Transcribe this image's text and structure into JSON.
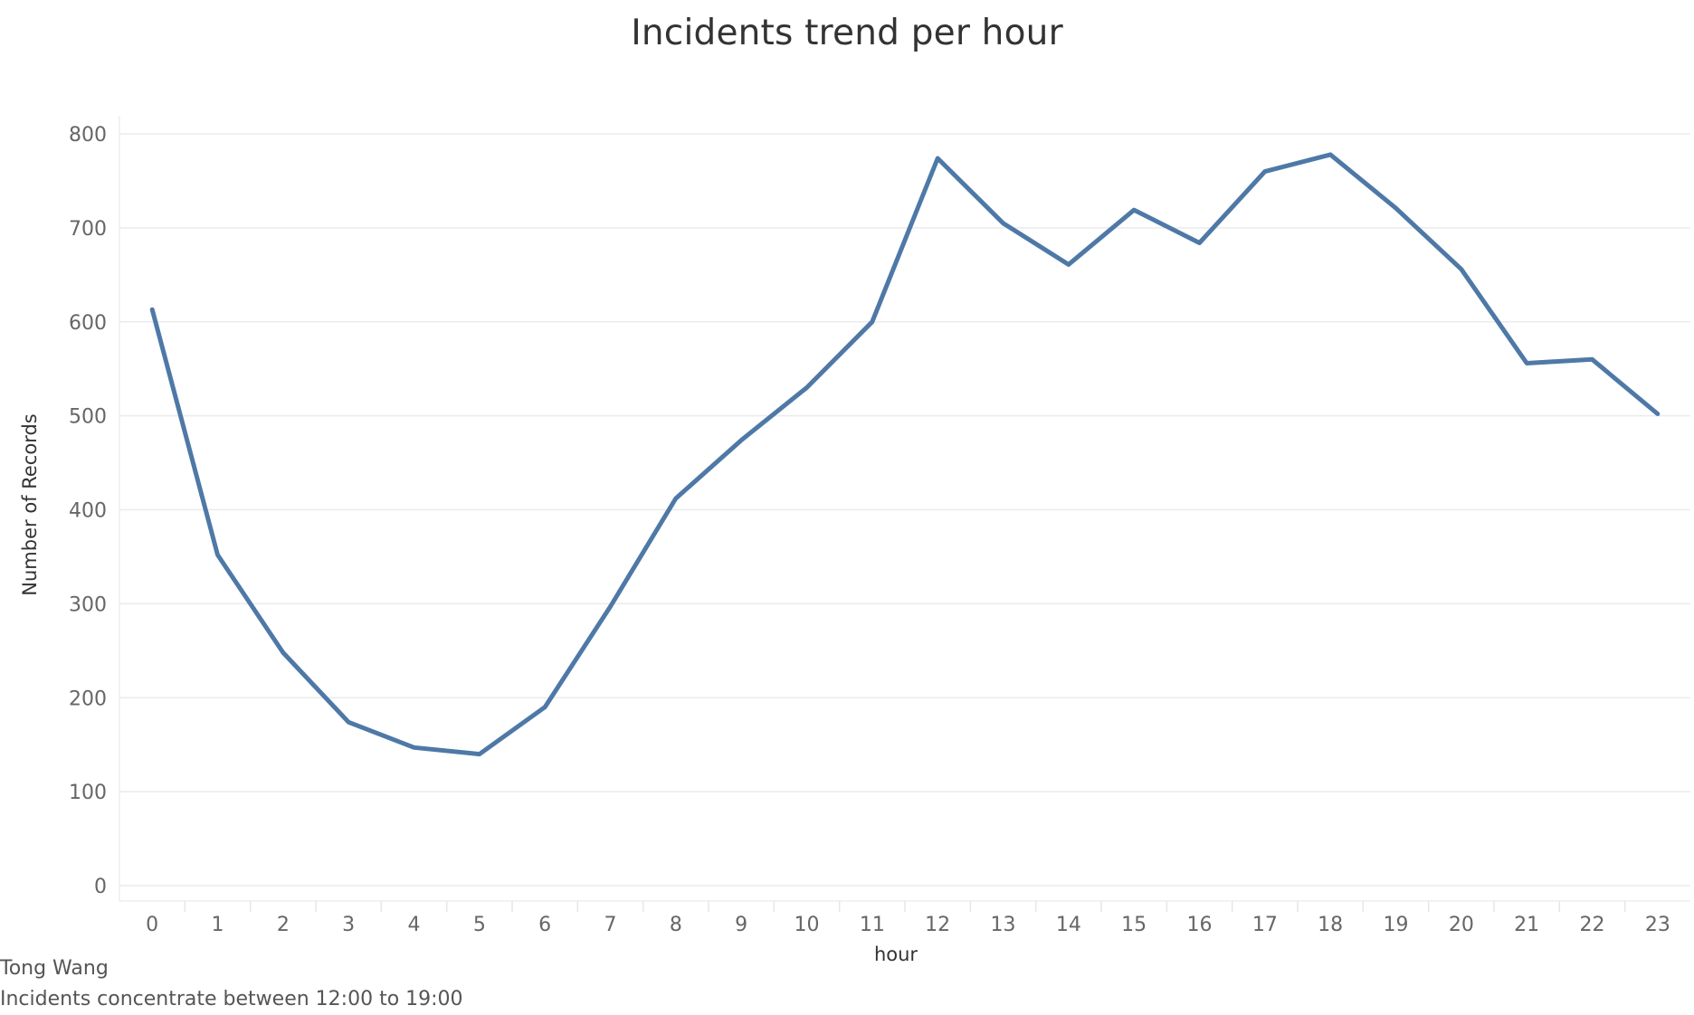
{
  "chart_data": {
    "type": "line",
    "title": "Incidents trend per hour",
    "xlabel": "hour",
    "ylabel": "Number of Records",
    "categories": [
      "0",
      "1",
      "2",
      "3",
      "4",
      "5",
      "6",
      "7",
      "8",
      "9",
      "10",
      "11",
      "12",
      "13",
      "14",
      "15",
      "16",
      "17",
      "18",
      "19",
      "20",
      "21",
      "22",
      "23"
    ],
    "values": [
      613,
      352,
      248,
      174,
      147,
      140,
      190,
      297,
      412,
      474,
      530,
      600,
      774,
      705,
      661,
      719,
      684,
      760,
      778,
      721,
      656,
      556,
      560,
      502
    ],
    "ylim": [
      0,
      800
    ],
    "yticks": [
      0,
      100,
      200,
      300,
      400,
      500,
      600,
      700,
      800
    ],
    "grid": true,
    "line_color": "#4e79a7"
  },
  "captions": {
    "author": "Tong Wang",
    "note": "Incidents concentrate between 12:00  to 19:00"
  }
}
